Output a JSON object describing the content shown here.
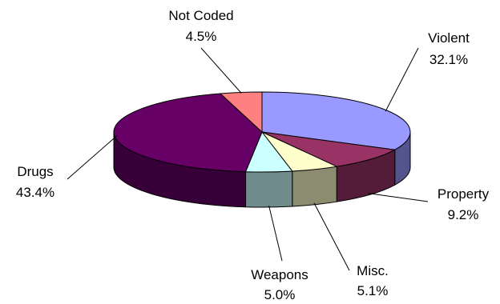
{
  "chart_data": {
    "type": "pie",
    "style": "3d-tilted",
    "title": "",
    "slices": [
      {
        "label": "Violent",
        "value_label": "32.1%",
        "value": 32.1,
        "color": "#9999FF"
      },
      {
        "label": "Property",
        "value_label": "9.2%",
        "value": 9.2,
        "color": "#993366"
      },
      {
        "label": "Misc.",
        "value_label": "5.1%",
        "value": 5.1,
        "color": "#FFFFCC"
      },
      {
        "label": "Weapons",
        "value_label": "5.0%",
        "value": 5.0,
        "color": "#CCFFFF"
      },
      {
        "label": "Drugs",
        "value_label": "43.4%",
        "value": 43.4,
        "color": "#660066"
      },
      {
        "label": "Not Coded",
        "value_label": "4.5%",
        "value": 4.5,
        "color": "#FF8080"
      }
    ]
  }
}
